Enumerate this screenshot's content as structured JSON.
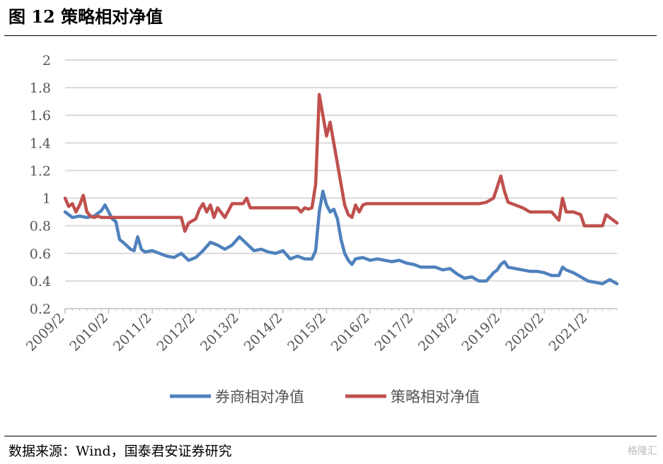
{
  "header": {
    "title": "图 12  策略相对净值"
  },
  "footer": {
    "source": "数据来源：Wind，国泰君安证券研究",
    "watermark": "格隆汇"
  },
  "chart_data": {
    "type": "line",
    "title": "",
    "xlabel": "",
    "ylabel": "",
    "ylim": [
      0.2,
      2
    ],
    "yticks": [
      0.2,
      0.4,
      0.6,
      0.8,
      1,
      1.2,
      1.4,
      1.6,
      1.8,
      2
    ],
    "ytick_labels": [
      "0.2",
      "0.4",
      "0.6",
      "0.8",
      "1",
      "1.2",
      "1.4",
      "1.6",
      "1.8",
      "2"
    ],
    "xlim": [
      "2009/2",
      "2021/10"
    ],
    "xtick_labels": [
      "2009/2",
      "2010/2",
      "2011/2",
      "2012/2",
      "2013/2",
      "2014/2",
      "2015/2",
      "2016/2",
      "2017/2",
      "2018/2",
      "2019/2",
      "2020/2",
      "2021/2"
    ],
    "grid": "horizontal",
    "legend_position": "bottom",
    "series": [
      {
        "name": "券商相对净值",
        "color": "#4F81BD",
        "points": [
          [
            "2009/2",
            0.9
          ],
          [
            "2009/4",
            0.86
          ],
          [
            "2009/6",
            0.87
          ],
          [
            "2009/8",
            0.86
          ],
          [
            "2009/10",
            0.87
          ],
          [
            "2009/12",
            0.91
          ],
          [
            "2010/1",
            0.95
          ],
          [
            "2010/2",
            0.9
          ],
          [
            "2010/3",
            0.85
          ],
          [
            "2010/4",
            0.83
          ],
          [
            "2010/5",
            0.7
          ],
          [
            "2010/6",
            0.68
          ],
          [
            "2010/8",
            0.63
          ],
          [
            "2010/9",
            0.62
          ],
          [
            "2010/10",
            0.72
          ],
          [
            "2010/11",
            0.63
          ],
          [
            "2010/12",
            0.61
          ],
          [
            "2011/2",
            0.62
          ],
          [
            "2011/4",
            0.6
          ],
          [
            "2011/6",
            0.58
          ],
          [
            "2011/8",
            0.57
          ],
          [
            "2011/10",
            0.6
          ],
          [
            "2011/12",
            0.55
          ],
          [
            "2012/2",
            0.57
          ],
          [
            "2012/4",
            0.62
          ],
          [
            "2012/6",
            0.68
          ],
          [
            "2012/8",
            0.66
          ],
          [
            "2012/10",
            0.63
          ],
          [
            "2012/12",
            0.66
          ],
          [
            "2013/2",
            0.72
          ],
          [
            "2013/4",
            0.67
          ],
          [
            "2013/6",
            0.62
          ],
          [
            "2013/8",
            0.63
          ],
          [
            "2013/10",
            0.61
          ],
          [
            "2013/12",
            0.6
          ],
          [
            "2014/2",
            0.62
          ],
          [
            "2014/4",
            0.56
          ],
          [
            "2014/6",
            0.58
          ],
          [
            "2014/8",
            0.56
          ],
          [
            "2014/10",
            0.56
          ],
          [
            "2014/11",
            0.62
          ],
          [
            "2014/12",
            0.9
          ],
          [
            "2015/1",
            1.05
          ],
          [
            "2015/2",
            0.95
          ],
          [
            "2015/3",
            0.9
          ],
          [
            "2015/4",
            0.92
          ],
          [
            "2015/5",
            0.85
          ],
          [
            "2015/6",
            0.7
          ],
          [
            "2015/7",
            0.6
          ],
          [
            "2015/8",
            0.55
          ],
          [
            "2015/9",
            0.52
          ],
          [
            "2015/10",
            0.56
          ],
          [
            "2015/12",
            0.57
          ],
          [
            "2016/2",
            0.55
          ],
          [
            "2016/4",
            0.56
          ],
          [
            "2016/6",
            0.55
          ],
          [
            "2016/8",
            0.54
          ],
          [
            "2016/10",
            0.55
          ],
          [
            "2016/12",
            0.53
          ],
          [
            "2017/2",
            0.52
          ],
          [
            "2017/4",
            0.5
          ],
          [
            "2017/6",
            0.5
          ],
          [
            "2017/8",
            0.5
          ],
          [
            "2017/10",
            0.48
          ],
          [
            "2017/12",
            0.49
          ],
          [
            "2018/2",
            0.45
          ],
          [
            "2018/4",
            0.42
          ],
          [
            "2018/6",
            0.43
          ],
          [
            "2018/8",
            0.4
          ],
          [
            "2018/10",
            0.4
          ],
          [
            "2018/12",
            0.46
          ],
          [
            "2019/1",
            0.48
          ],
          [
            "2019/2",
            0.52
          ],
          [
            "2019/3",
            0.54
          ],
          [
            "2019/4",
            0.5
          ],
          [
            "2019/6",
            0.49
          ],
          [
            "2019/8",
            0.48
          ],
          [
            "2019/10",
            0.47
          ],
          [
            "2019/12",
            0.47
          ],
          [
            "2020/2",
            0.46
          ],
          [
            "2020/4",
            0.44
          ],
          [
            "2020/6",
            0.44
          ],
          [
            "2020/7",
            0.5
          ],
          [
            "2020/8",
            0.48
          ],
          [
            "2020/10",
            0.46
          ],
          [
            "2020/12",
            0.43
          ],
          [
            "2021/2",
            0.4
          ],
          [
            "2021/4",
            0.39
          ],
          [
            "2021/6",
            0.38
          ],
          [
            "2021/8",
            0.41
          ],
          [
            "2021/10",
            0.38
          ]
        ]
      },
      {
        "name": "策略相对净值",
        "color": "#C0504D",
        "points": [
          [
            "2009/2",
            1.0
          ],
          [
            "2009/3",
            0.94
          ],
          [
            "2009/4",
            0.96
          ],
          [
            "2009/5",
            0.9
          ],
          [
            "2009/6",
            0.95
          ],
          [
            "2009/7",
            1.02
          ],
          [
            "2009/8",
            0.9
          ],
          [
            "2009/9",
            0.87
          ],
          [
            "2009/10",
            0.86
          ],
          [
            "2009/11",
            0.87
          ],
          [
            "2009/12",
            0.86
          ],
          [
            "2010/2",
            0.86
          ],
          [
            "2011/2",
            0.86
          ],
          [
            "2011/10",
            0.86
          ],
          [
            "2011/11",
            0.76
          ],
          [
            "2011/12",
            0.82
          ],
          [
            "2012/2",
            0.85
          ],
          [
            "2012/3",
            0.92
          ],
          [
            "2012/4",
            0.96
          ],
          [
            "2012/5",
            0.9
          ],
          [
            "2012/6",
            0.95
          ],
          [
            "2012/7",
            0.86
          ],
          [
            "2012/8",
            0.93
          ],
          [
            "2012/10",
            0.86
          ],
          [
            "2012/12",
            0.96
          ],
          [
            "2013/2",
            0.96
          ],
          [
            "2013/3",
            0.96
          ],
          [
            "2013/4",
            1.0
          ],
          [
            "2013/5",
            0.93
          ],
          [
            "2013/6",
            0.93
          ],
          [
            "2013/8",
            0.93
          ],
          [
            "2014/2",
            0.93
          ],
          [
            "2014/6",
            0.93
          ],
          [
            "2014/7",
            0.9
          ],
          [
            "2014/8",
            0.93
          ],
          [
            "2014/9",
            0.92
          ],
          [
            "2014/10",
            0.93
          ],
          [
            "2014/11",
            1.1
          ],
          [
            "2014/12",
            1.75
          ],
          [
            "2015/1",
            1.6
          ],
          [
            "2015/2",
            1.45
          ],
          [
            "2015/3",
            1.55
          ],
          [
            "2015/4",
            1.4
          ],
          [
            "2015/5",
            1.25
          ],
          [
            "2015/6",
            1.1
          ],
          [
            "2015/7",
            0.95
          ],
          [
            "2015/8",
            0.88
          ],
          [
            "2015/9",
            0.86
          ],
          [
            "2015/10",
            0.95
          ],
          [
            "2015/11",
            0.9
          ],
          [
            "2015/12",
            0.95
          ],
          [
            "2016/1",
            0.96
          ],
          [
            "2016/2",
            0.96
          ],
          [
            "2017/2",
            0.96
          ],
          [
            "2018/2",
            0.96
          ],
          [
            "2018/6",
            0.96
          ],
          [
            "2018/8",
            0.96
          ],
          [
            "2018/10",
            0.97
          ],
          [
            "2018/12",
            1.0
          ],
          [
            "2019/1",
            1.08
          ],
          [
            "2019/2",
            1.16
          ],
          [
            "2019/3",
            1.05
          ],
          [
            "2019/4",
            0.97
          ],
          [
            "2019/6",
            0.95
          ],
          [
            "2019/8",
            0.93
          ],
          [
            "2019/10",
            0.9
          ],
          [
            "2019/12",
            0.9
          ],
          [
            "2020/2",
            0.9
          ],
          [
            "2020/4",
            0.9
          ],
          [
            "2020/6",
            0.84
          ],
          [
            "2020/7",
            1.0
          ],
          [
            "2020/8",
            0.9
          ],
          [
            "2020/10",
            0.9
          ],
          [
            "2020/12",
            0.88
          ],
          [
            "2021/1",
            0.8
          ],
          [
            "2021/2",
            0.8
          ],
          [
            "2021/4",
            0.8
          ],
          [
            "2021/6",
            0.8
          ],
          [
            "2021/7",
            0.88
          ],
          [
            "2021/8",
            0.86
          ],
          [
            "2021/10",
            0.82
          ]
        ]
      }
    ]
  }
}
